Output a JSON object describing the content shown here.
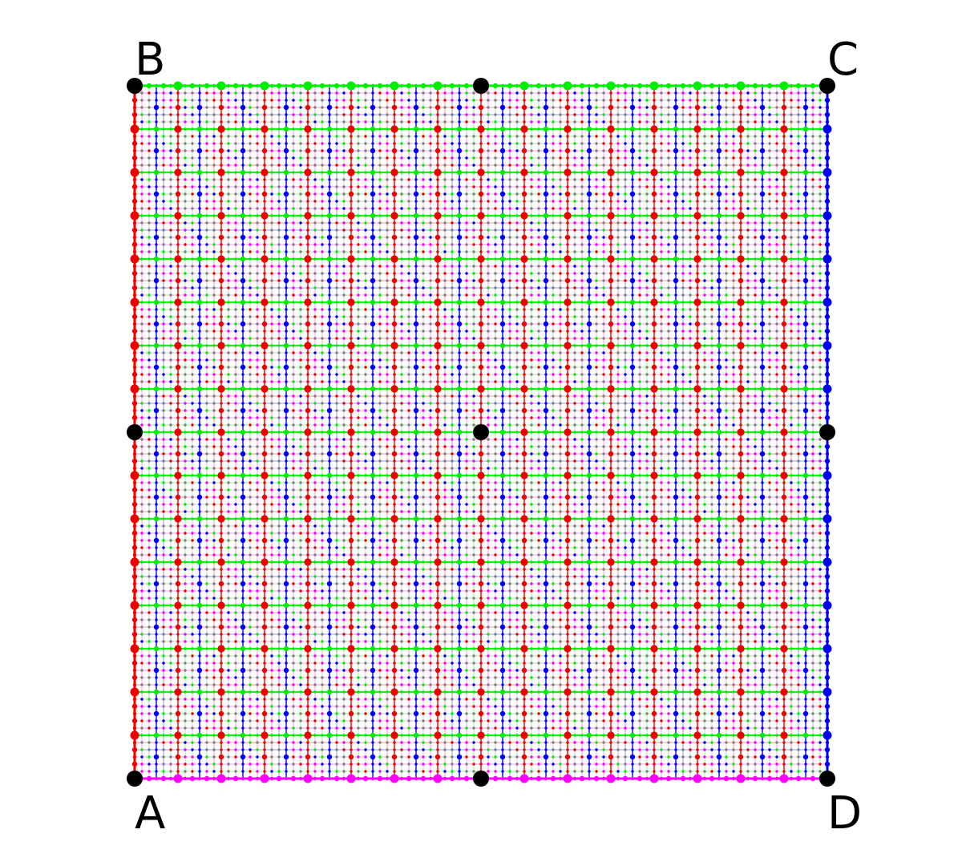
{
  "diagram": {
    "corners": [
      {
        "id": "A",
        "label": "A"
      },
      {
        "id": "B",
        "label": "B"
      },
      {
        "id": "C",
        "label": "C"
      },
      {
        "id": "D",
        "label": "D"
      }
    ],
    "grid_subdivisions": 96,
    "colors": {
      "background": "#ffffff",
      "bottom_edge": "#ff00ff",
      "top_edge": "#00ee00",
      "left_edge": "#ee0000",
      "right_edge": "#0000ee",
      "interior_gray": "#808080",
      "interior_magenta": "#ff00ff",
      "interior_green": "#00ee00",
      "interior_red": "#ee0000",
      "interior_blue": "#0000ee",
      "vertex": "#000000"
    }
  }
}
